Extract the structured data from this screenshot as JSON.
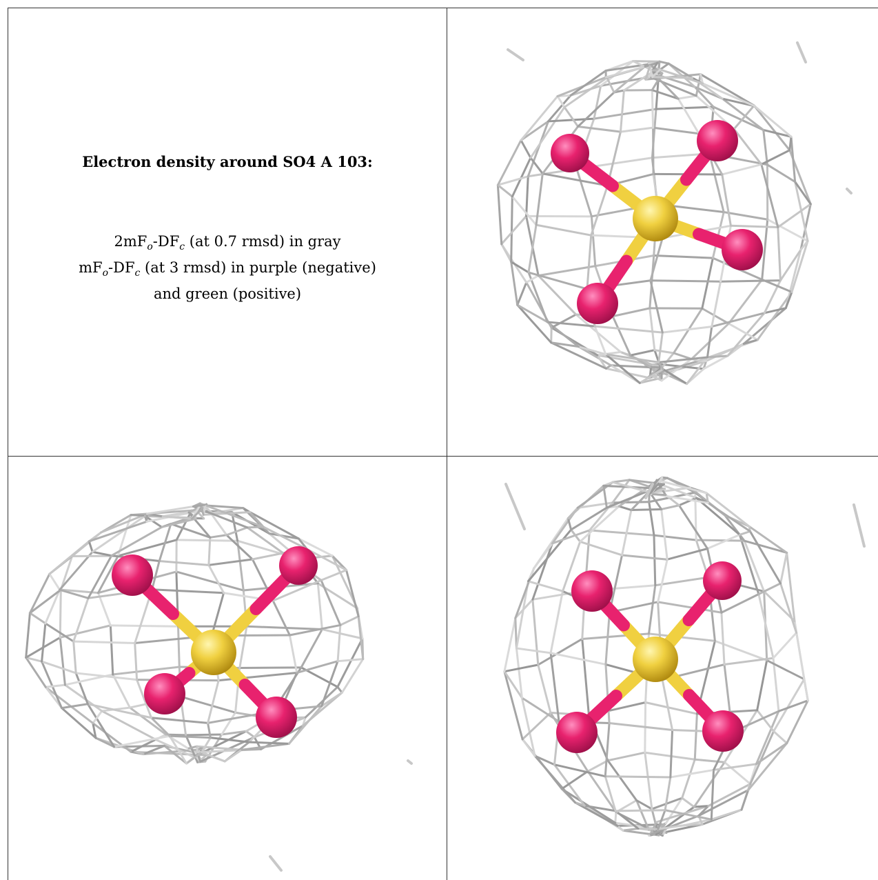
{
  "caption": {
    "title": "Electron density around SO4 A 103:",
    "line1_pre": "2mF",
    "line1_sub1": "o",
    "line1_mid": "-DF",
    "line1_sub2": "c",
    "line1_post": " (at 0.7 rmsd) in gray",
    "line2_pre": "mF",
    "line2_sub1": "o",
    "line2_mid": "-DF",
    "line2_sub2": "c",
    "line2_post": " (at 3 rmsd) in purple (negative)",
    "line3": "and green (positive)"
  },
  "colors": {
    "mesh": "#b8b8b8",
    "oxygen": "#e8226e",
    "sulfur": "#f0d040",
    "border": "#333333"
  },
  "panels": [
    {
      "name": "view-1",
      "molecule": "SO4"
    },
    {
      "name": "view-2",
      "molecule": "SO4"
    },
    {
      "name": "view-3",
      "molecule": "SO4"
    }
  ]
}
